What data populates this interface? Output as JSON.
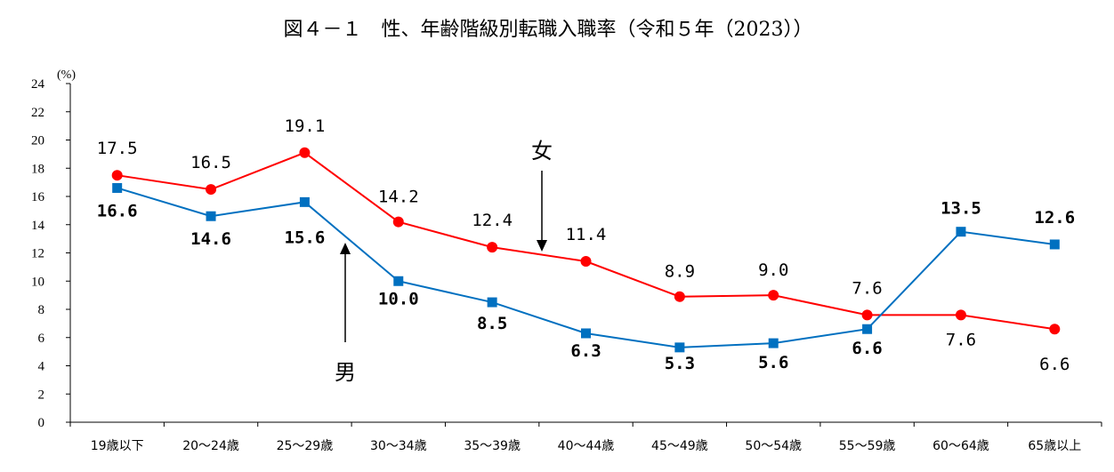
{
  "chart_data": {
    "type": "line",
    "title": "図４－１　性、年齢階級別転職入職率（令和５年（2023））",
    "ylabel": "(%)",
    "ylim": [
      0,
      24
    ],
    "yticks": [
      0,
      2,
      4,
      6,
      8,
      10,
      12,
      14,
      16,
      18,
      20,
      22,
      24
    ],
    "grid": false,
    "categories": [
      "19歳以下",
      "20～24歳",
      "25～29歳",
      "30～34歳",
      "35～39歳",
      "40～44歳",
      "45～49歳",
      "50～54歳",
      "55～59歳",
      "60～64歳",
      "65歳以上"
    ],
    "series": [
      {
        "name": "女",
        "color": "#ff0000",
        "marker": "circle",
        "values": [
          17.5,
          16.5,
          19.1,
          14.2,
          12.4,
          11.4,
          8.9,
          9.0,
          7.6,
          7.6,
          6.6
        ],
        "labels": [
          "17.5",
          "16.5",
          "19.1",
          "14.2",
          "12.4",
          "11.4",
          "8.9",
          "9.0",
          "7.6",
          "7.6",
          "6.6"
        ]
      },
      {
        "name": "男",
        "color": "#0070c0",
        "marker": "square",
        "values": [
          16.6,
          14.6,
          15.6,
          10.0,
          8.5,
          6.3,
          5.3,
          5.6,
          6.6,
          13.5,
          12.6
        ],
        "labels": [
          "16.6",
          "14.6",
          "15.6",
          "10.0",
          "8.5",
          "6.3",
          "5.3",
          "5.6",
          "6.6",
          "13.5",
          "12.6"
        ]
      }
    ]
  }
}
